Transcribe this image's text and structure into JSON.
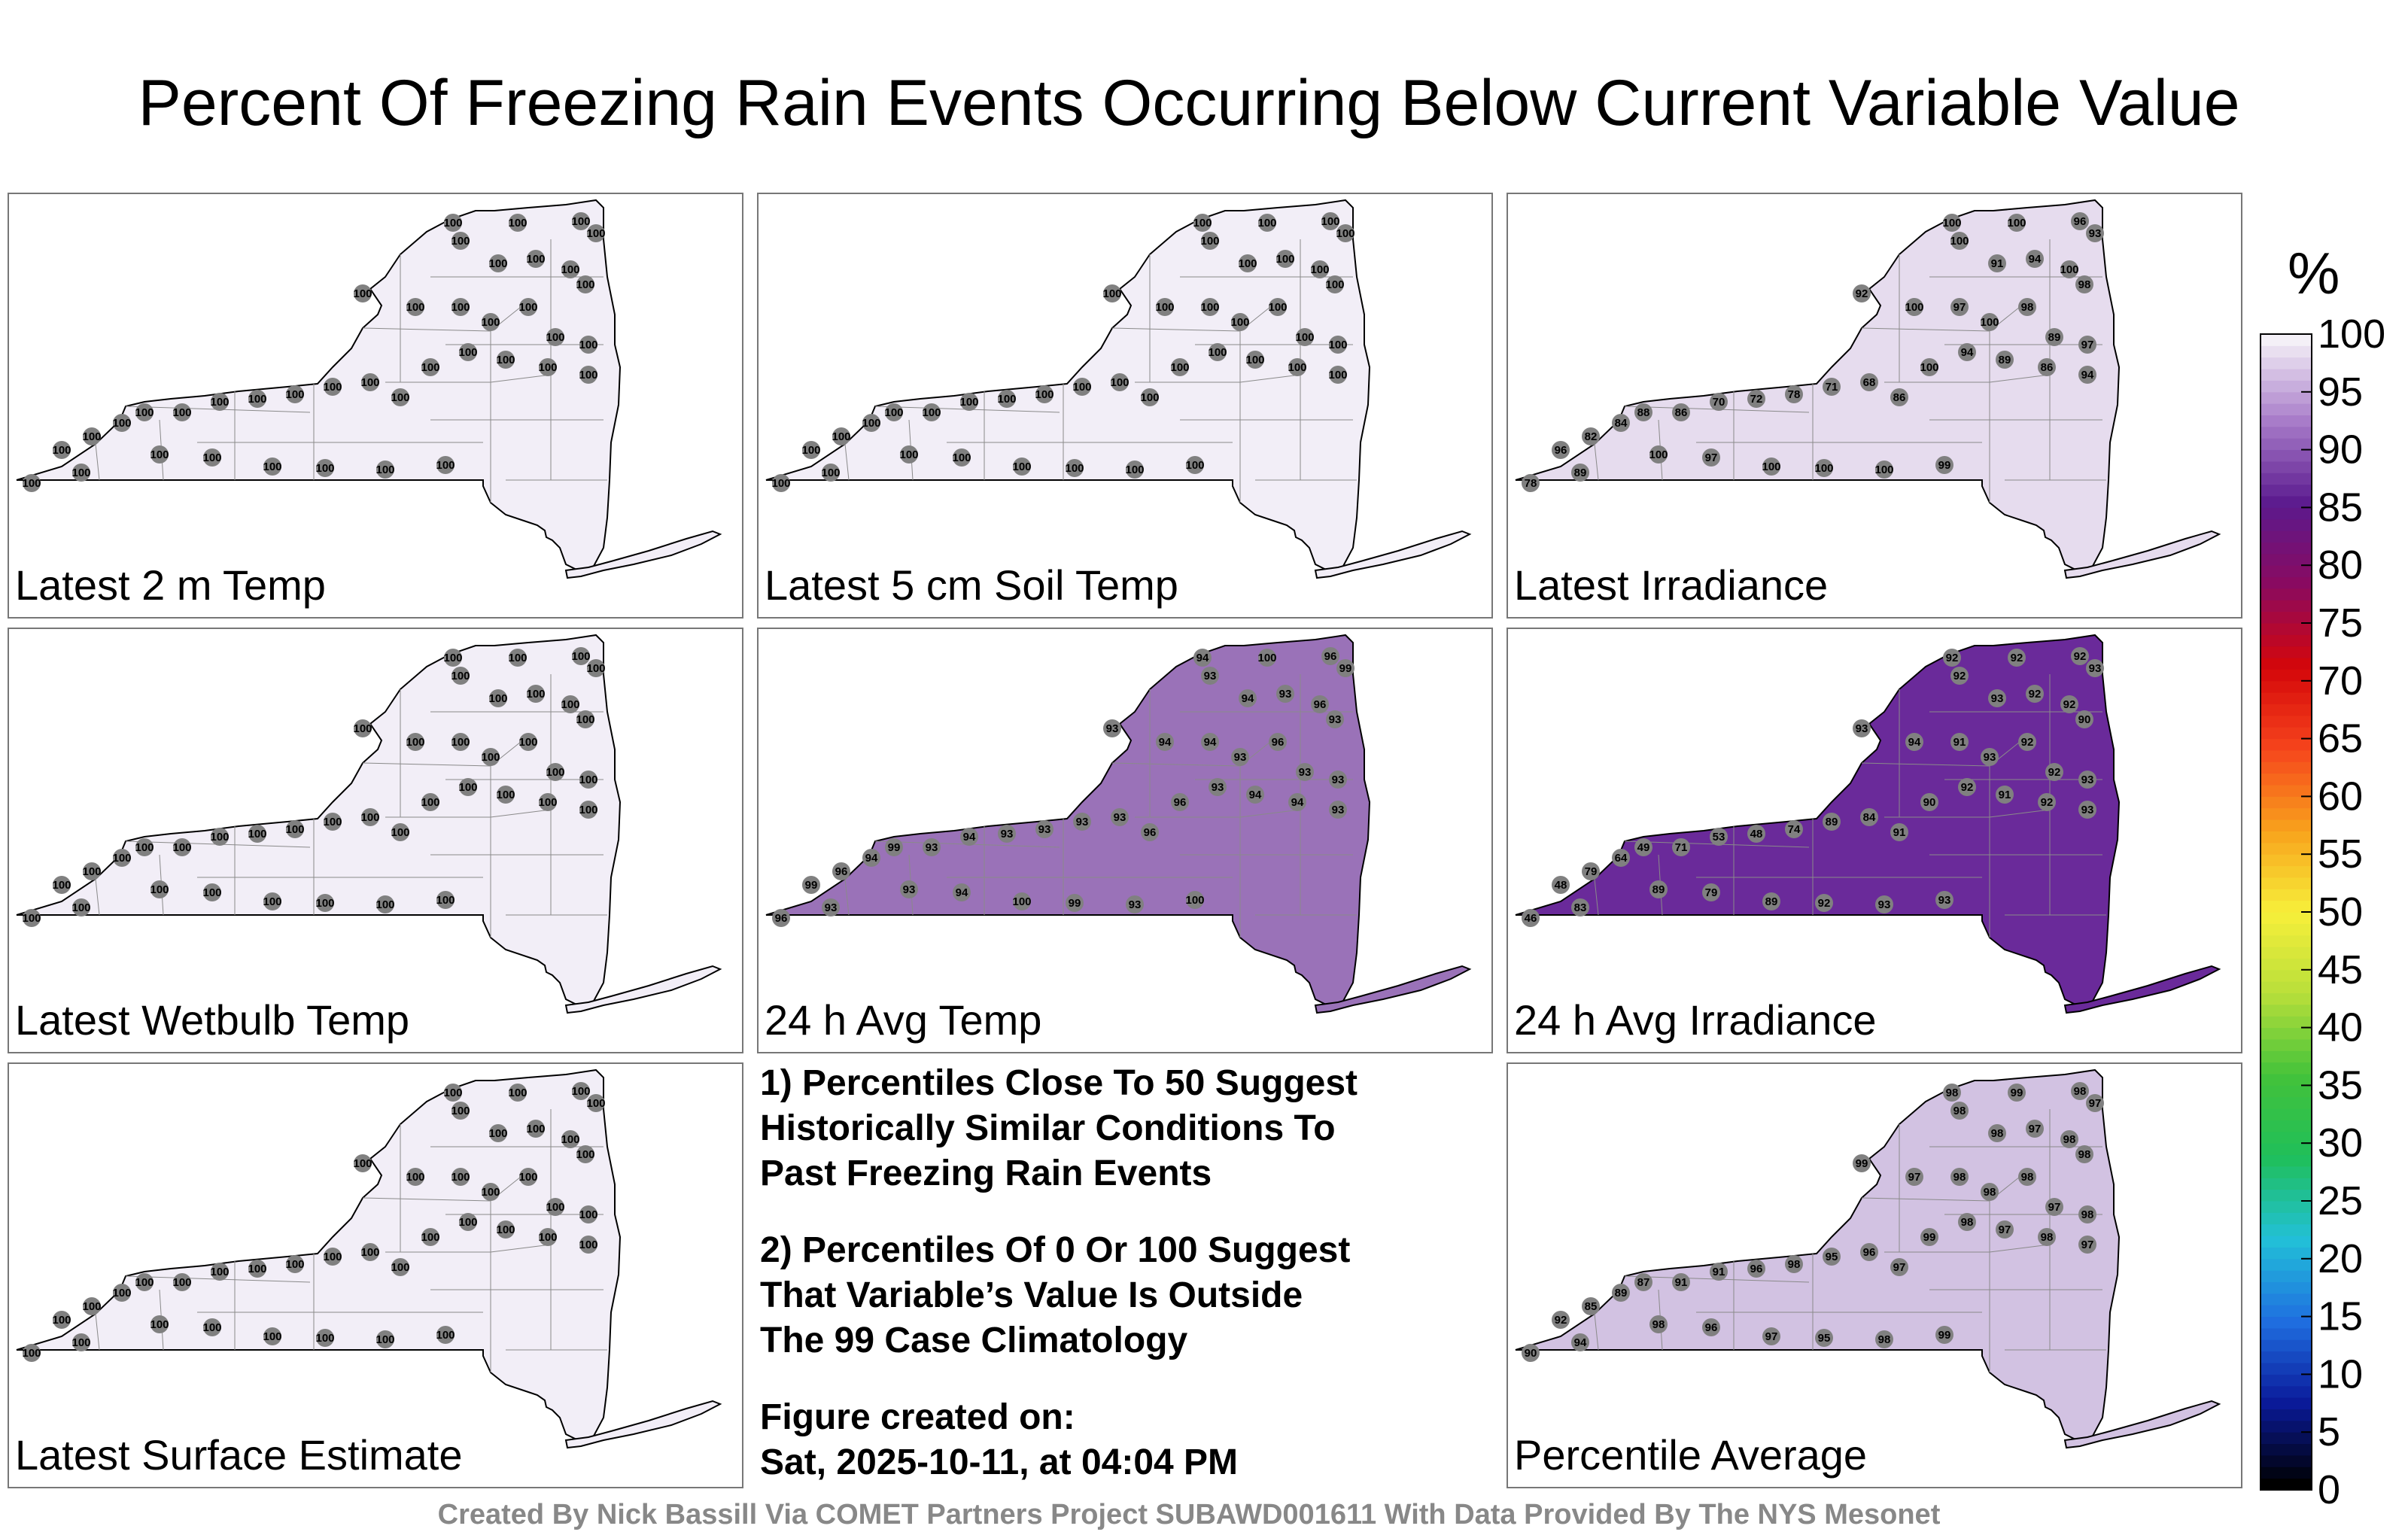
{
  "title": "Percent Of Freezing Rain Events Occurring Below Current Variable Value",
  "panels": [
    {
      "label": "Latest 2 m Temp",
      "fill": "#f2eef7",
      "fill_pct": 100,
      "values": [
        100,
        100,
        100,
        100,
        100,
        100,
        100,
        100,
        100,
        100,
        100,
        100,
        100,
        100,
        100,
        100,
        100,
        100,
        100,
        100,
        100,
        100,
        100,
        100,
        100,
        100,
        100,
        100,
        100,
        100,
        100,
        100,
        100,
        100,
        100,
        100,
        100,
        100,
        100,
        100
      ]
    },
    {
      "label": "Latest 5 cm Soil Temp",
      "fill": "#f2eef7",
      "fill_pct": 100,
      "values": [
        100,
        100,
        100,
        100,
        100,
        100,
        100,
        100,
        100,
        100,
        100,
        100,
        100,
        100,
        100,
        100,
        100,
        100,
        100,
        100,
        100,
        100,
        100,
        100,
        100,
        100,
        100,
        100,
        100,
        100,
        100,
        100,
        100,
        100,
        100,
        100,
        100,
        100,
        100,
        100
      ]
    },
    {
      "label": "Latest Irradiance",
      "fill": "#e6dcee",
      "fill_pct": 97,
      "values": [
        100,
        100,
        96,
        93,
        92,
        100,
        91,
        94,
        100,
        98,
        100,
        97,
        100,
        98,
        89,
        97,
        94,
        86,
        89,
        94,
        100,
        86,
        68,
        71,
        78,
        72,
        70,
        86,
        88,
        84,
        82,
        96,
        78,
        89,
        100,
        97,
        100,
        100,
        100,
        99
      ]
    },
    {
      "label": "Latest Wetbulb Temp",
      "fill": "#f2eef7",
      "fill_pct": 100,
      "values": [
        100,
        100,
        100,
        100,
        100,
        100,
        100,
        100,
        100,
        100,
        100,
        100,
        100,
        100,
        100,
        100,
        100,
        100,
        100,
        100,
        100,
        100,
        100,
        100,
        100,
        100,
        100,
        100,
        100,
        100,
        100,
        100,
        100,
        100,
        100,
        100,
        100,
        100,
        100,
        100
      ]
    },
    {
      "label": "24 h Avg Temp",
      "fill": "#9a72b8",
      "fill_pct": 93,
      "values": [
        94,
        100,
        96,
        99,
        93,
        93,
        94,
        93,
        96,
        93,
        94,
        94,
        93,
        96,
        93,
        93,
        93,
        94,
        94,
        93,
        96,
        96,
        93,
        93,
        93,
        93,
        94,
        93,
        99,
        94,
        96,
        99,
        96,
        93,
        93,
        94,
        100,
        99,
        93,
        100
      ]
    },
    {
      "label": "24 h Avg Irradiance",
      "fill": "#6a2a9a",
      "fill_pct": 91,
      "values": [
        92,
        92,
        92,
        93,
        93,
        92,
        93,
        92,
        92,
        90,
        94,
        91,
        93,
        92,
        92,
        93,
        93,
        92,
        91,
        92,
        90,
        91,
        84,
        89,
        74,
        48,
        53,
        71,
        49,
        64,
        79,
        48,
        46,
        83,
        89,
        79,
        89,
        92,
        93,
        93
      ]
    },
    {
      "label": "Latest Surface Estimate",
      "fill": "#f2eef7",
      "fill_pct": 100,
      "values": [
        100,
        100,
        100,
        100,
        100,
        100,
        100,
        100,
        100,
        100,
        100,
        100,
        100,
        100,
        100,
        100,
        100,
        100,
        100,
        100,
        100,
        100,
        100,
        100,
        100,
        100,
        100,
        100,
        100,
        100,
        100,
        100,
        100,
        100,
        100,
        100,
        100,
        100,
        100,
        100
      ]
    },
    {
      "label": "Percentile Average",
      "fill": "#d2c2e2",
      "fill_pct": 97,
      "values": [
        98,
        99,
        98,
        97,
        99,
        98,
        98,
        97,
        98,
        98,
        97,
        98,
        98,
        98,
        97,
        98,
        97,
        98,
        97,
        98,
        99,
        97,
        96,
        95,
        98,
        96,
        91,
        91,
        87,
        89,
        85,
        92,
        90,
        94,
        98,
        96,
        97,
        95,
        98,
        99
      ]
    }
  ],
  "notes": {
    "line1": "1) Percentiles Close To 50 Suggest",
    "line2": "Historically Similar Conditions To",
    "line3": "Past Freezing Rain Events",
    "line4": "2) Percentiles Of 0 Or 100 Suggest",
    "line5": "That Variable’s Value Is Outside",
    "line6": "The 99 Case Climatology",
    "line7": "Figure created on:",
    "line8": "Sat, 2025-10-11, at 04:04 PM"
  },
  "colorbar": {
    "unit": "%",
    "labels": [
      "100",
      "95",
      "90",
      "85",
      "80",
      "75",
      "70",
      "65",
      "60",
      "55",
      "50",
      "45",
      "40",
      "35",
      "30",
      "25",
      "20",
      "15",
      "10",
      "5",
      "0"
    ],
    "stops": [
      "#000000",
      "#0a1a9a",
      "#1f6fe0",
      "#22c0d8",
      "#1fbf5a",
      "#43c23a",
      "#b8df3a",
      "#f7ef3a",
      "#f8a21c",
      "#f6441c",
      "#d4060a",
      "#8a0a60",
      "#5b1a8e",
      "#a77bc9",
      "#f4f0f7"
    ]
  },
  "credit": "Created By Nick Bassill Via COMET Partners Project SUBAWD001611 With Data Provided By The NYS Mesonet"
}
